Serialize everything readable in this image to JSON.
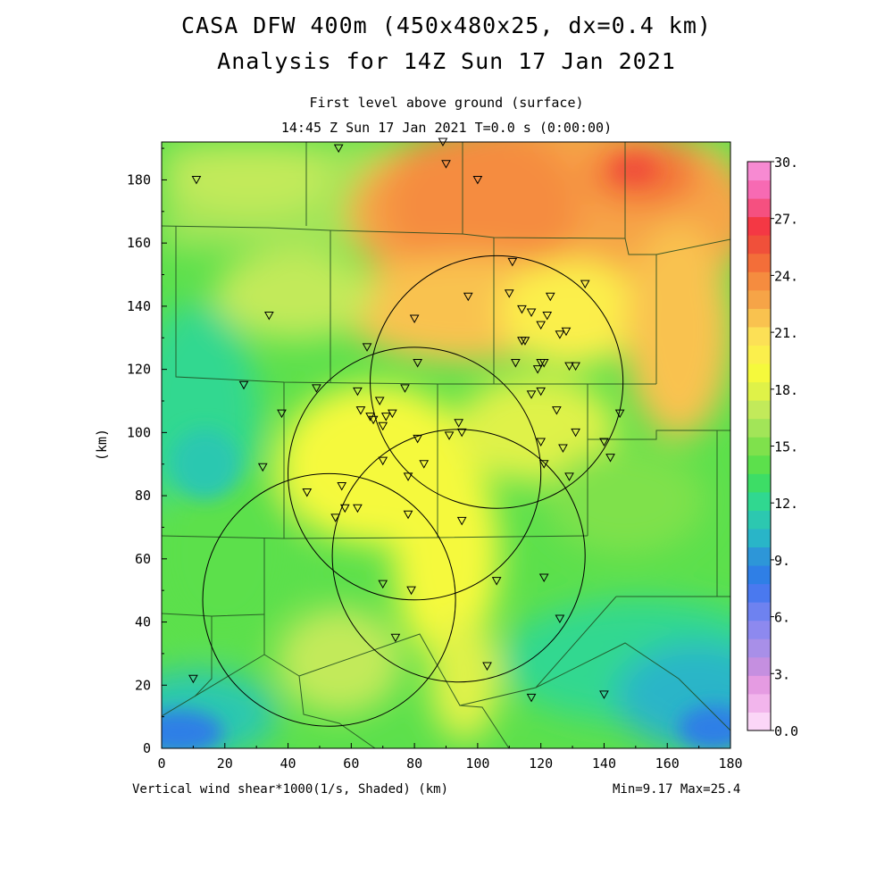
{
  "header": {
    "title_line1": "CASA DFW 400m (450x480x25, dx=0.4 km)",
    "title_line2": "Analysis for 14Z Sun 17 Jan 2021",
    "subtitle_line1": "First level above ground (surface)",
    "subtitle_line2": "14:45 Z Sun 17 Jan 2021   T=0.0 s (0:00:00)"
  },
  "footer": {
    "variable_label": "Vertical wind shear*1000(1/s, Shaded)  (km)",
    "min_max": "Min=9.17 Max=25.4"
  },
  "axes": {
    "y_label": "(km)",
    "x_ticks": [
      "0",
      "20",
      "40",
      "60",
      "80",
      "100",
      "120",
      "140",
      "160",
      "180"
    ],
    "y_ticks": [
      "0",
      "20",
      "40",
      "60",
      "80",
      "100",
      "120",
      "140",
      "160",
      "180"
    ]
  },
  "colorbar": {
    "labels": [
      "0.0",
      "3.",
      "6.",
      "9.",
      "12.",
      "15.",
      "18.",
      "21.",
      "24.",
      "27.",
      "30."
    ],
    "colors": [
      "#fbd6f7",
      "#f2b5ec",
      "#e59be2",
      "#c58fe0",
      "#a88fe8",
      "#8d89ef",
      "#6e82f0",
      "#4a79ef",
      "#2f7fe6",
      "#2d96d8",
      "#29b5c8",
      "#2cc8b0",
      "#30d890",
      "#3ddd66",
      "#5ce04c",
      "#7fe14c",
      "#a2e558",
      "#c2ea5a",
      "#dff248",
      "#f5f93c",
      "#fbef4c",
      "#fce056",
      "#f9c24f",
      "#f6a447",
      "#f58c3f",
      "#f36e39",
      "#f0503a",
      "#f43844",
      "#f55080",
      "#f76ab3",
      "#f78ad2"
    ]
  },
  "circles_center_km": [
    [
      53,
      47
    ],
    [
      80,
      87
    ],
    [
      94,
      61
    ],
    [
      106,
      116
    ]
  ],
  "radar_radius_km": 40,
  "stations_km": [
    [
      11,
      180
    ],
    [
      56,
      190
    ],
    [
      89,
      192
    ],
    [
      90,
      185
    ],
    [
      100,
      180
    ],
    [
      34,
      137
    ],
    [
      38,
      106
    ],
    [
      26,
      115
    ],
    [
      32,
      89
    ],
    [
      46,
      81
    ],
    [
      49,
      114
    ],
    [
      57,
      83
    ],
    [
      58,
      76
    ],
    [
      62,
      76
    ],
    [
      55,
      73
    ],
    [
      62,
      113
    ],
    [
      63,
      107
    ],
    [
      65,
      127
    ],
    [
      66,
      105
    ],
    [
      67,
      104
    ],
    [
      69,
      110
    ],
    [
      70,
      102
    ],
    [
      70,
      91
    ],
    [
      71,
      105
    ],
    [
      73,
      106
    ],
    [
      77,
      114
    ],
    [
      78,
      74
    ],
    [
      78,
      86
    ],
    [
      80,
      136
    ],
    [
      81,
      122
    ],
    [
      81,
      98
    ],
    [
      83,
      90
    ],
    [
      70,
      52
    ],
    [
      79,
      50
    ],
    [
      74,
      35
    ],
    [
      91,
      99
    ],
    [
      94,
      103
    ],
    [
      95,
      100
    ],
    [
      95,
      72
    ],
    [
      97,
      143
    ],
    [
      106,
      53
    ],
    [
      103,
      26
    ],
    [
      110,
      144
    ],
    [
      111,
      154
    ],
    [
      112,
      122
    ],
    [
      114,
      129
    ],
    [
      114,
      139
    ],
    [
      115,
      129
    ],
    [
      117,
      138
    ],
    [
      117,
      112
    ],
    [
      119,
      120
    ],
    [
      120,
      113
    ],
    [
      120,
      122
    ],
    [
      121,
      122
    ],
    [
      120,
      97
    ],
    [
      120,
      134
    ],
    [
      121,
      54
    ],
    [
      121,
      90
    ],
    [
      122,
      137
    ],
    [
      123,
      143
    ],
    [
      125,
      107
    ],
    [
      126,
      41
    ],
    [
      126,
      131
    ],
    [
      127,
      95
    ],
    [
      128,
      132
    ],
    [
      129,
      86
    ],
    [
      129,
      121
    ],
    [
      131,
      121
    ],
    [
      131,
      100
    ],
    [
      134,
      147
    ],
    [
      140,
      97
    ],
    [
      142,
      92
    ],
    [
      145,
      106
    ],
    [
      140,
      17
    ],
    [
      117,
      16
    ],
    [
      10,
      22
    ]
  ],
  "map_numbers": {
    "x_range": [
      0,
      180
    ],
    "y_range": [
      0,
      192
    ],
    "min": 9.17,
    "max": 25.4
  }
}
